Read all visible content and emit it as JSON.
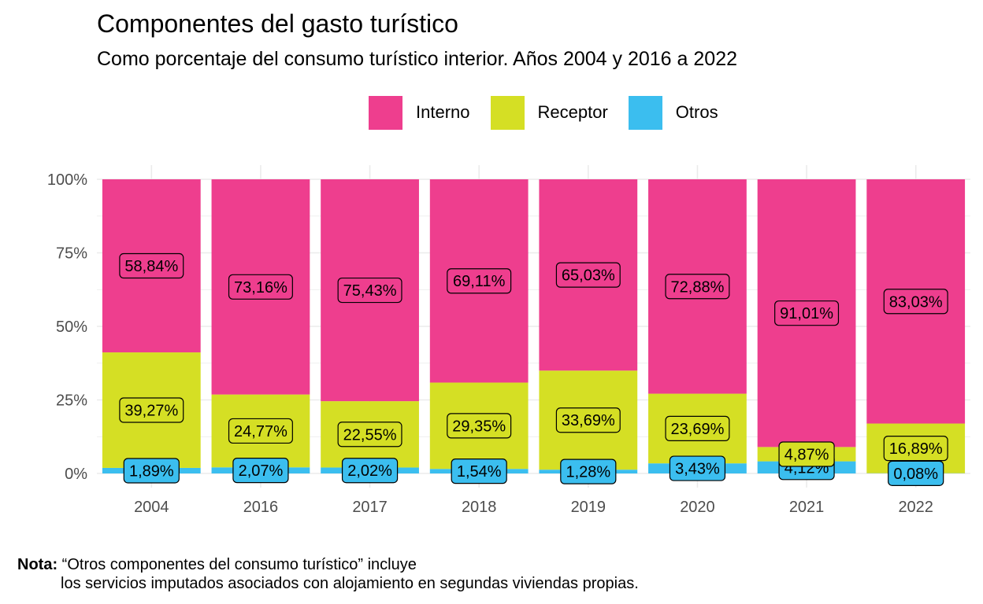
{
  "title": "Componentes del gasto turístico",
  "subtitle": "Como porcentaje del consumo turístico interior. Años 2004 y 2016 a 2022",
  "note": {
    "label": "Nota:",
    "line1": "“Otros componentes del consumo turístico” incluye",
    "line2": "los servicios imputados asociados con alojamiento en segundas viviendas propias."
  },
  "colors": {
    "Interno": "#EE3E8E",
    "Receptor": "#D5DF24",
    "Otros": "#3BBEEF",
    "grid": "#EBEBEB",
    "axis_text": "#4D4D4D"
  },
  "chart_data": {
    "type": "bar",
    "stacked": true,
    "title": "Componentes del gasto turístico",
    "subtitle": "Como porcentaje del consumo turístico interior. Años 2004 y 2016 a 2022",
    "categories": [
      "2004",
      "2016",
      "2017",
      "2018",
      "2019",
      "2020",
      "2021",
      "2022"
    ],
    "series": [
      {
        "name": "Otros",
        "values": [
          1.89,
          2.07,
          2.02,
          1.54,
          1.28,
          3.43,
          4.12,
          0.08
        ],
        "labels": [
          "1,89%",
          "2,07%",
          "2,02%",
          "1,54%",
          "1,28%",
          "3,43%",
          "4,12%",
          "0,08%"
        ]
      },
      {
        "name": "Receptor",
        "values": [
          39.27,
          24.77,
          22.55,
          29.35,
          33.69,
          23.69,
          4.87,
          16.89
        ],
        "labels": [
          "39,27%",
          "24,77%",
          "22,55%",
          "29,35%",
          "33,69%",
          "23,69%",
          "4,87%",
          "16,89%"
        ]
      },
      {
        "name": "Interno",
        "values": [
          58.84,
          73.16,
          75.43,
          69.11,
          65.03,
          72.88,
          91.01,
          83.03
        ],
        "labels": [
          "58,84%",
          "73,16%",
          "75,43%",
          "69,11%",
          "65,03%",
          "72,88%",
          "91,01%",
          "83,03%"
        ]
      }
    ],
    "legend_order": [
      "Interno",
      "Receptor",
      "Otros"
    ],
    "legend_position": "top",
    "ylim": [
      0,
      100
    ],
    "yticks": [
      0,
      25,
      50,
      75,
      100
    ],
    "ytick_labels": [
      "0%",
      "25%",
      "50%",
      "75%",
      "100%"
    ],
    "xlabel": "",
    "ylabel": "",
    "grid": true
  }
}
